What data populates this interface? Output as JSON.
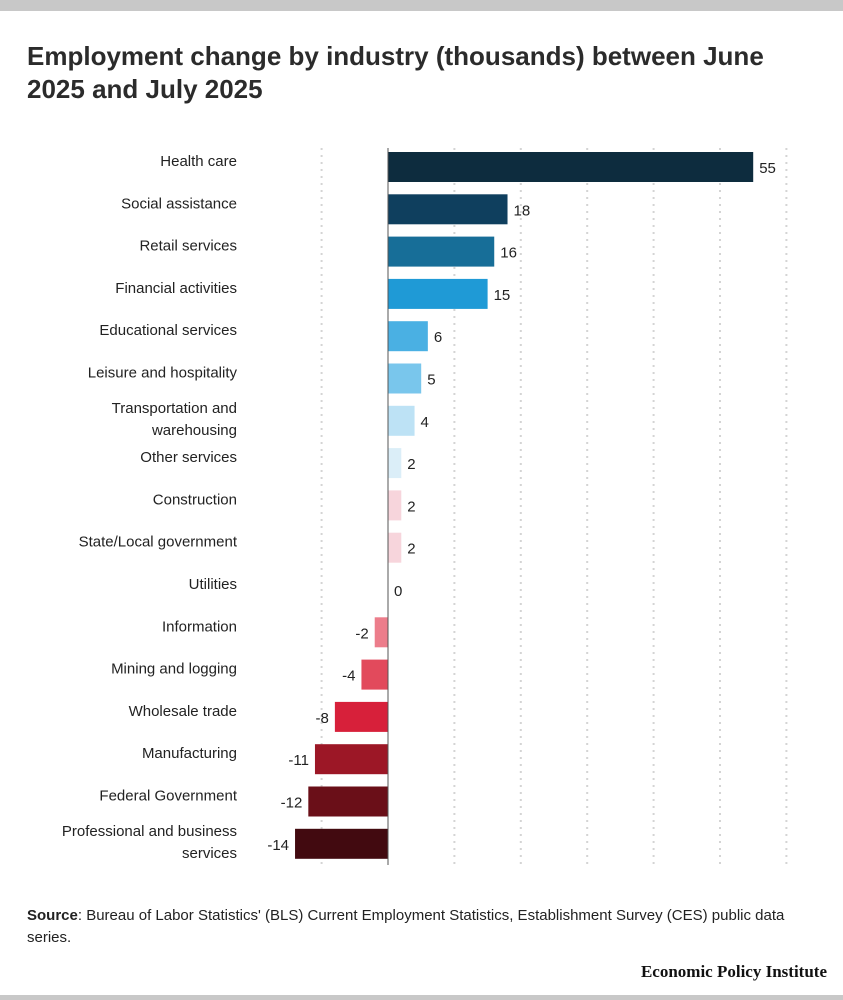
{
  "title": "Employment change by industry (thousands) between June 2025 and July 2025",
  "chart_data": {
    "type": "bar",
    "orientation": "horizontal",
    "title": "Employment change by industry (thousands) between June 2025 and July 2025",
    "xlabel": "",
    "ylabel": "",
    "xlim": [
      -14,
      55
    ],
    "grid": true,
    "categories": [
      "Health care",
      "Social assistance",
      "Retail services",
      "Financial activities",
      "Educational services",
      "Leisure and hospitality",
      "Transportation and warehousing",
      "Other services",
      "Construction",
      "State/Local government",
      "Utilities",
      "Information",
      "Mining and logging",
      "Wholesale trade",
      "Manufacturing",
      "Federal Government",
      "Professional and business services"
    ],
    "values": [
      55,
      18,
      16,
      15,
      6,
      5,
      4,
      2,
      2,
      2,
      0,
      -2,
      -4,
      -8,
      -11,
      -12,
      -14
    ],
    "colors": [
      "#0d2c3e",
      "#0f3f5e",
      "#176e98",
      "#1f9ad6",
      "#4ab0e3",
      "#79c6ec",
      "#bde2f5",
      "#dbeef8",
      "#f7d5dc",
      "#f7d5dc",
      "#f7d5dc",
      "#ec7d8b",
      "#e24a5c",
      "#d7203a",
      "#9c1726",
      "#6a0f18",
      "#420a10"
    ]
  },
  "source": {
    "label": "Source",
    "text": ": Bureau of Labor Statistics' (BLS) Current Employment Statistics, Establishment Survey (CES) public data series."
  },
  "brand": "Economic Policy Institute"
}
